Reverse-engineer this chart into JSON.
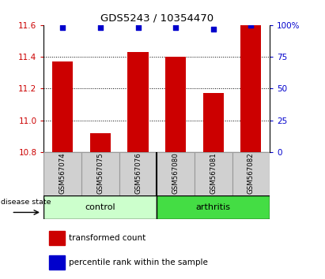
{
  "title": "GDS5243 / 10354470",
  "samples": [
    "GSM567074",
    "GSM567075",
    "GSM567076",
    "GSM567080",
    "GSM567081",
    "GSM567082"
  ],
  "bar_values": [
    11.37,
    10.92,
    11.43,
    11.4,
    11.17,
    11.6
  ],
  "percentile_values": [
    98,
    98,
    98,
    98,
    97,
    100
  ],
  "ylim_left": [
    10.8,
    11.6
  ],
  "ylim_right": [
    0,
    100
  ],
  "yticks_left": [
    10.8,
    11.0,
    11.2,
    11.4,
    11.6
  ],
  "yticks_right": [
    0,
    25,
    50,
    75,
    100
  ],
  "bar_color": "#cc0000",
  "percentile_color": "#0000cc",
  "bar_width": 0.55,
  "control_indices": [
    0,
    1,
    2
  ],
  "arthritis_indices": [
    3,
    4,
    5
  ],
  "control_label": "control",
  "arthritis_label": "arthritis",
  "control_color": "#ccffcc",
  "arthritis_color": "#44dd44",
  "disease_state_label": "disease state",
  "legend_bar_label": "transformed count",
  "legend_dot_label": "percentile rank within the sample",
  "left_tick_color": "#cc0000",
  "right_tick_color": "#0000cc",
  "sample_box_color": "#d0d0d0",
  "grid_ticks": [
    11.0,
    11.2,
    11.4
  ]
}
